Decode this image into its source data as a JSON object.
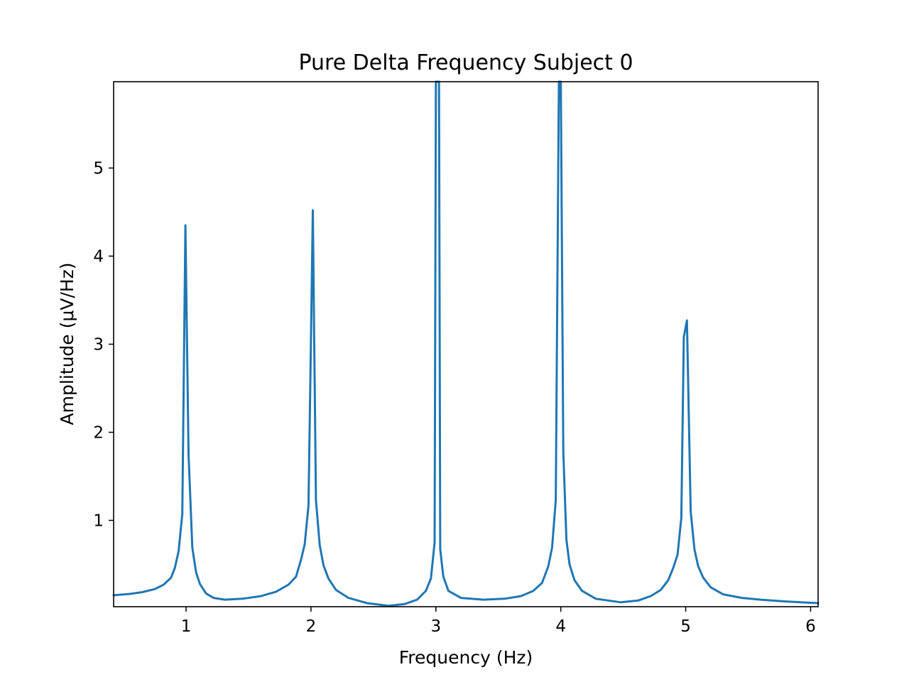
{
  "chart_data": {
    "type": "line",
    "title": "Pure Delta Frequency Subject 0",
    "xlabel": "Frequency (Hz)",
    "ylabel": "Amplitude (μV/Hz)",
    "xlim": [
      0.42,
      6.06
    ],
    "ylim": [
      0.02,
      5.98
    ],
    "xticks": [
      "1",
      "2",
      "3",
      "4",
      "5",
      "6"
    ],
    "yticks": [
      "1",
      "2",
      "3",
      "4",
      "5"
    ],
    "grid": false,
    "series": [
      {
        "color": "#1f77b4",
        "points": [
          [
            0.42,
            0.15
          ],
          [
            0.55,
            0.165
          ],
          [
            0.65,
            0.185
          ],
          [
            0.75,
            0.22
          ],
          [
            0.82,
            0.27
          ],
          [
            0.88,
            0.35
          ],
          [
            0.91,
            0.46
          ],
          [
            0.94,
            0.65
          ],
          [
            0.97,
            1.07
          ],
          [
            0.995,
            4.35
          ],
          [
            1.02,
            1.75
          ],
          [
            1.05,
            0.69
          ],
          [
            1.08,
            0.41
          ],
          [
            1.11,
            0.28
          ],
          [
            1.16,
            0.17
          ],
          [
            1.22,
            0.12
          ],
          [
            1.31,
            0.1
          ],
          [
            1.45,
            0.11
          ],
          [
            1.6,
            0.14
          ],
          [
            1.72,
            0.19
          ],
          [
            1.82,
            0.27
          ],
          [
            1.88,
            0.36
          ],
          [
            1.92,
            0.55
          ],
          [
            1.95,
            0.73
          ],
          [
            1.98,
            1.17
          ],
          [
            2.0,
            3.06
          ],
          [
            2.015,
            4.52
          ],
          [
            2.04,
            1.23
          ],
          [
            2.07,
            0.72
          ],
          [
            2.1,
            0.49
          ],
          [
            2.14,
            0.34
          ],
          [
            2.2,
            0.21
          ],
          [
            2.3,
            0.12
          ],
          [
            2.45,
            0.06
          ],
          [
            2.62,
            0.03
          ],
          [
            2.75,
            0.05
          ],
          [
            2.85,
            0.1
          ],
          [
            2.92,
            0.2
          ],
          [
            2.96,
            0.34
          ],
          [
            2.99,
            0.75
          ],
          [
            3.0,
            5.98
          ],
          [
            3.025,
            5.98
          ],
          [
            3.035,
            0.67
          ],
          [
            3.06,
            0.36
          ],
          [
            3.1,
            0.2
          ],
          [
            3.2,
            0.12
          ],
          [
            3.38,
            0.1
          ],
          [
            3.55,
            0.11
          ],
          [
            3.68,
            0.14
          ],
          [
            3.78,
            0.2
          ],
          [
            3.85,
            0.29
          ],
          [
            3.9,
            0.48
          ],
          [
            3.93,
            0.69
          ],
          [
            3.96,
            1.23
          ],
          [
            3.985,
            5.98
          ],
          [
            4.0,
            5.98
          ],
          [
            4.02,
            1.78
          ],
          [
            4.045,
            0.78
          ],
          [
            4.07,
            0.5
          ],
          [
            4.11,
            0.32
          ],
          [
            4.17,
            0.2
          ],
          [
            4.28,
            0.11
          ],
          [
            4.48,
            0.07
          ],
          [
            4.62,
            0.09
          ],
          [
            4.72,
            0.14
          ],
          [
            4.8,
            0.21
          ],
          [
            4.86,
            0.32
          ],
          [
            4.9,
            0.46
          ],
          [
            4.935,
            0.61
          ],
          [
            4.965,
            1.03
          ],
          [
            4.985,
            3.08
          ],
          [
            5.01,
            3.27
          ],
          [
            5.04,
            1.1
          ],
          [
            5.07,
            0.67
          ],
          [
            5.1,
            0.48
          ],
          [
            5.14,
            0.35
          ],
          [
            5.2,
            0.24
          ],
          [
            5.3,
            0.16
          ],
          [
            5.45,
            0.12
          ],
          [
            5.6,
            0.1
          ],
          [
            5.8,
            0.08
          ],
          [
            6.06,
            0.06
          ]
        ]
      }
    ]
  }
}
